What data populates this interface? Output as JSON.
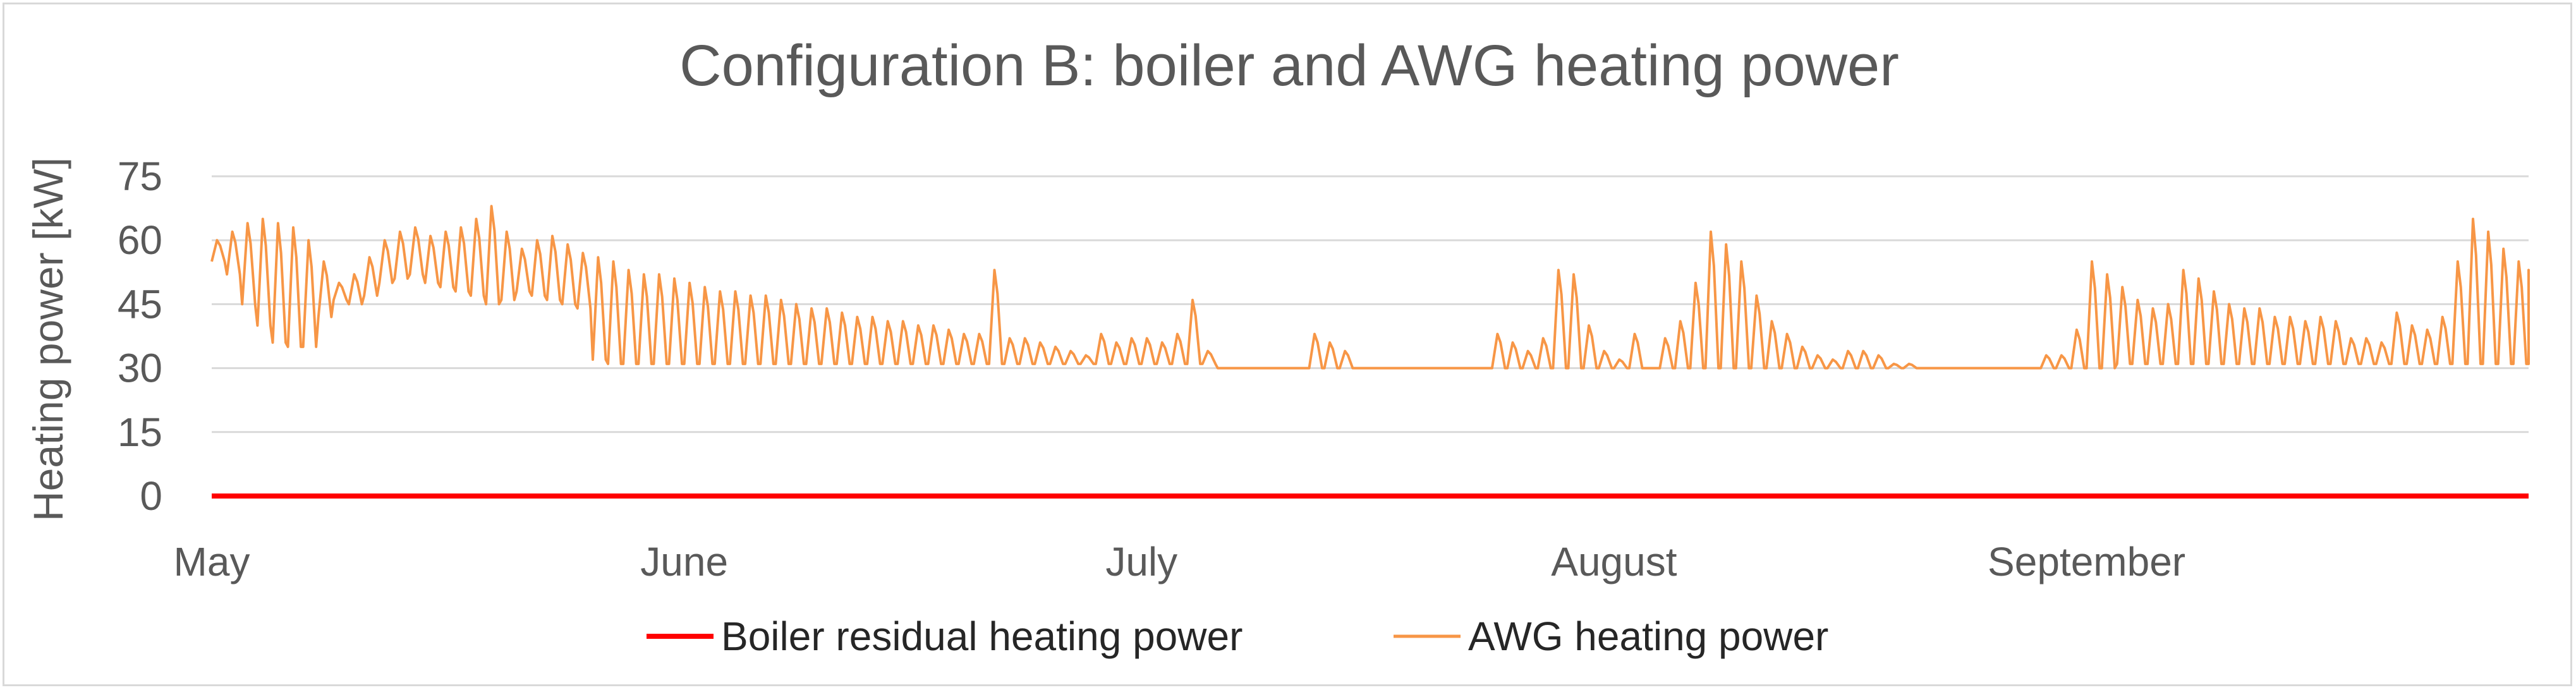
{
  "chart_data": {
    "type": "line",
    "title": "Configuration B:   boiler and AWG heating power",
    "xlabel": "",
    "ylabel": "Heating power [kW]",
    "ylim": [
      0,
      75
    ],
    "yticks": [
      0,
      15,
      30,
      45,
      60,
      75
    ],
    "xlim": [
      "2000-05-01",
      "2000-09-30"
    ],
    "month_labels": [
      {
        "label": "May",
        "date": "2000-05-01"
      },
      {
        "label": "June",
        "date": "2000-06-01"
      },
      {
        "label": "July",
        "date": "2000-07-01"
      },
      {
        "label": "August",
        "date": "2000-08-01"
      },
      {
        "label": "September",
        "date": "2000-09-01"
      }
    ],
    "grid": true,
    "legend_position": "bottom",
    "series": [
      {
        "name": "Boiler residual heating power",
        "color": "#ff0000",
        "x": [
          "2000-05-01",
          "2000-09-30"
        ],
        "y": [
          0,
          0
        ]
      },
      {
        "name": "AWG heating power",
        "color": "#f79646",
        "x": [
          "2000-05-01",
          "2000-05-02",
          "2000-05-03",
          "2000-05-04",
          "2000-05-05",
          "2000-05-06",
          "2000-05-07",
          "2000-05-08",
          "2000-05-09",
          "2000-05-10",
          "2000-05-11",
          "2000-05-12",
          "2000-05-13",
          "2000-05-14",
          "2000-05-15",
          "2000-05-16",
          "2000-05-17",
          "2000-05-18",
          "2000-05-19",
          "2000-05-20",
          "2000-05-21",
          "2000-05-22",
          "2000-05-23",
          "2000-05-24",
          "2000-05-25",
          "2000-05-26",
          "2000-05-27",
          "2000-05-28",
          "2000-05-29",
          "2000-05-30",
          "2000-05-31",
          "2000-06-01",
          "2000-06-02",
          "2000-06-03",
          "2000-06-04",
          "2000-06-05",
          "2000-06-06",
          "2000-06-07",
          "2000-06-08",
          "2000-06-09",
          "2000-06-10",
          "2000-06-11",
          "2000-06-12",
          "2000-06-13",
          "2000-06-14",
          "2000-06-15",
          "2000-06-16",
          "2000-06-17",
          "2000-06-18",
          "2000-06-19",
          "2000-06-20",
          "2000-06-21",
          "2000-06-22",
          "2000-06-23",
          "2000-06-24",
          "2000-06-25",
          "2000-06-26",
          "2000-06-27",
          "2000-06-28",
          "2000-06-29",
          "2000-06-30",
          "2000-07-01",
          "2000-07-02",
          "2000-07-03",
          "2000-07-04",
          "2000-07-05",
          "2000-07-06",
          "2000-07-07",
          "2000-07-08",
          "2000-07-09",
          "2000-07-10",
          "2000-07-11",
          "2000-07-12",
          "2000-07-13",
          "2000-07-14",
          "2000-07-15",
          "2000-07-16",
          "2000-07-17",
          "2000-07-18",
          "2000-07-19",
          "2000-07-20",
          "2000-07-21",
          "2000-07-22",
          "2000-07-23",
          "2000-07-24",
          "2000-07-25",
          "2000-07-26",
          "2000-07-27",
          "2000-07-28",
          "2000-07-29",
          "2000-07-30",
          "2000-07-31",
          "2000-08-01",
          "2000-08-02",
          "2000-08-03",
          "2000-08-04",
          "2000-08-05",
          "2000-08-06",
          "2000-08-07",
          "2000-08-08",
          "2000-08-09",
          "2000-08-10",
          "2000-08-11",
          "2000-08-12",
          "2000-08-13",
          "2000-08-14",
          "2000-08-15",
          "2000-08-16",
          "2000-08-17",
          "2000-08-18",
          "2000-08-19",
          "2000-08-20",
          "2000-08-21",
          "2000-08-22",
          "2000-08-23",
          "2000-08-24",
          "2000-08-25",
          "2000-08-26",
          "2000-08-27",
          "2000-08-28",
          "2000-08-29",
          "2000-08-30",
          "2000-08-31",
          "2000-09-01",
          "2000-09-02",
          "2000-09-03",
          "2000-09-04",
          "2000-09-05",
          "2000-09-06",
          "2000-09-07",
          "2000-09-08",
          "2000-09-09",
          "2000-09-10",
          "2000-09-11",
          "2000-09-12",
          "2000-09-13",
          "2000-09-14",
          "2000-09-15",
          "2000-09-16",
          "2000-09-17",
          "2000-09-18",
          "2000-09-19",
          "2000-09-20",
          "2000-09-21",
          "2000-09-22",
          "2000-09-23",
          "2000-09-24",
          "2000-09-25",
          "2000-09-26",
          "2000-09-27",
          "2000-09-28",
          "2000-09-29",
          "2000-09-30"
        ],
        "y_max": [
          60,
          62,
          64,
          65,
          64,
          63,
          60,
          55,
          50,
          52,
          56,
          60,
          62,
          63,
          61,
          62,
          63,
          65,
          68,
          62,
          58,
          60,
          61,
          59,
          57,
          56,
          55,
          53,
          52,
          52,
          51,
          50,
          49,
          48,
          48,
          47,
          47,
          46,
          45,
          44,
          44,
          43,
          42,
          42,
          41,
          41,
          40,
          40,
          39,
          38,
          38,
          53,
          37,
          37,
          36,
          35,
          34,
          33,
          38,
          36,
          37,
          37,
          36,
          38,
          46,
          34,
          30,
          30,
          30,
          30,
          30,
          30,
          38,
          36,
          34,
          30,
          30,
          30,
          30,
          30,
          30,
          30,
          30,
          30,
          38,
          36,
          34,
          37,
          53,
          52,
          40,
          34,
          32,
          38,
          30,
          37,
          41,
          50,
          62,
          59,
          55,
          47,
          41,
          38,
          35,
          33,
          32,
          34,
          34,
          33,
          31,
          31,
          30,
          30,
          30,
          30,
          30,
          30,
          30,
          30,
          33,
          33,
          39,
          55,
          52,
          49,
          46,
          44,
          45,
          53,
          51,
          48,
          45,
          44,
          44,
          42,
          42,
          41,
          42,
          41,
          37,
          37,
          36,
          43,
          40,
          39,
          42,
          55,
          65,
          62,
          58,
          55,
          53,
          52,
          49,
          48
        ],
        "y_min": [
          55,
          52,
          45,
          40,
          36,
          35,
          35,
          42,
          46,
          45,
          47,
          50,
          51,
          52,
          50,
          49,
          48,
          47,
          45,
          46,
          48,
          47,
          46,
          45,
          44,
          32,
          31,
          31,
          31,
          31,
          31,
          31,
          31,
          31,
          31,
          31,
          31,
          31,
          31,
          31,
          31,
          31,
          31,
          31,
          31,
          31,
          31,
          31,
          31,
          31,
          31,
          31,
          31,
          31,
          31,
          31,
          31,
          31,
          31,
          31,
          31,
          31,
          31,
          31,
          31,
          31,
          30,
          30,
          30,
          30,
          30,
          30,
          30,
          30,
          30,
          30,
          30,
          30,
          30,
          30,
          30,
          30,
          30,
          30,
          30,
          30,
          30,
          30,
          30,
          30,
          30,
          30,
          30,
          30,
          30,
          30,
          30,
          30,
          30,
          30,
          30,
          30,
          30,
          30,
          30,
          30,
          30,
          30,
          30,
          30,
          30,
          30,
          30,
          30,
          30,
          30,
          30,
          30,
          30,
          30,
          30,
          30,
          30,
          30,
          30,
          31,
          31,
          31,
          31,
          31,
          31,
          31,
          31,
          31,
          31,
          31,
          31,
          31,
          31,
          31,
          31,
          31,
          31,
          31,
          31,
          31,
          31,
          31,
          31,
          31,
          31,
          31,
          31,
          31
        ]
      }
    ]
  },
  "legend": {
    "items": [
      {
        "label": "Boiler residual heating power",
        "color": "#ff0000"
      },
      {
        "label": "AWG heating power",
        "color": "#f79646"
      }
    ]
  }
}
